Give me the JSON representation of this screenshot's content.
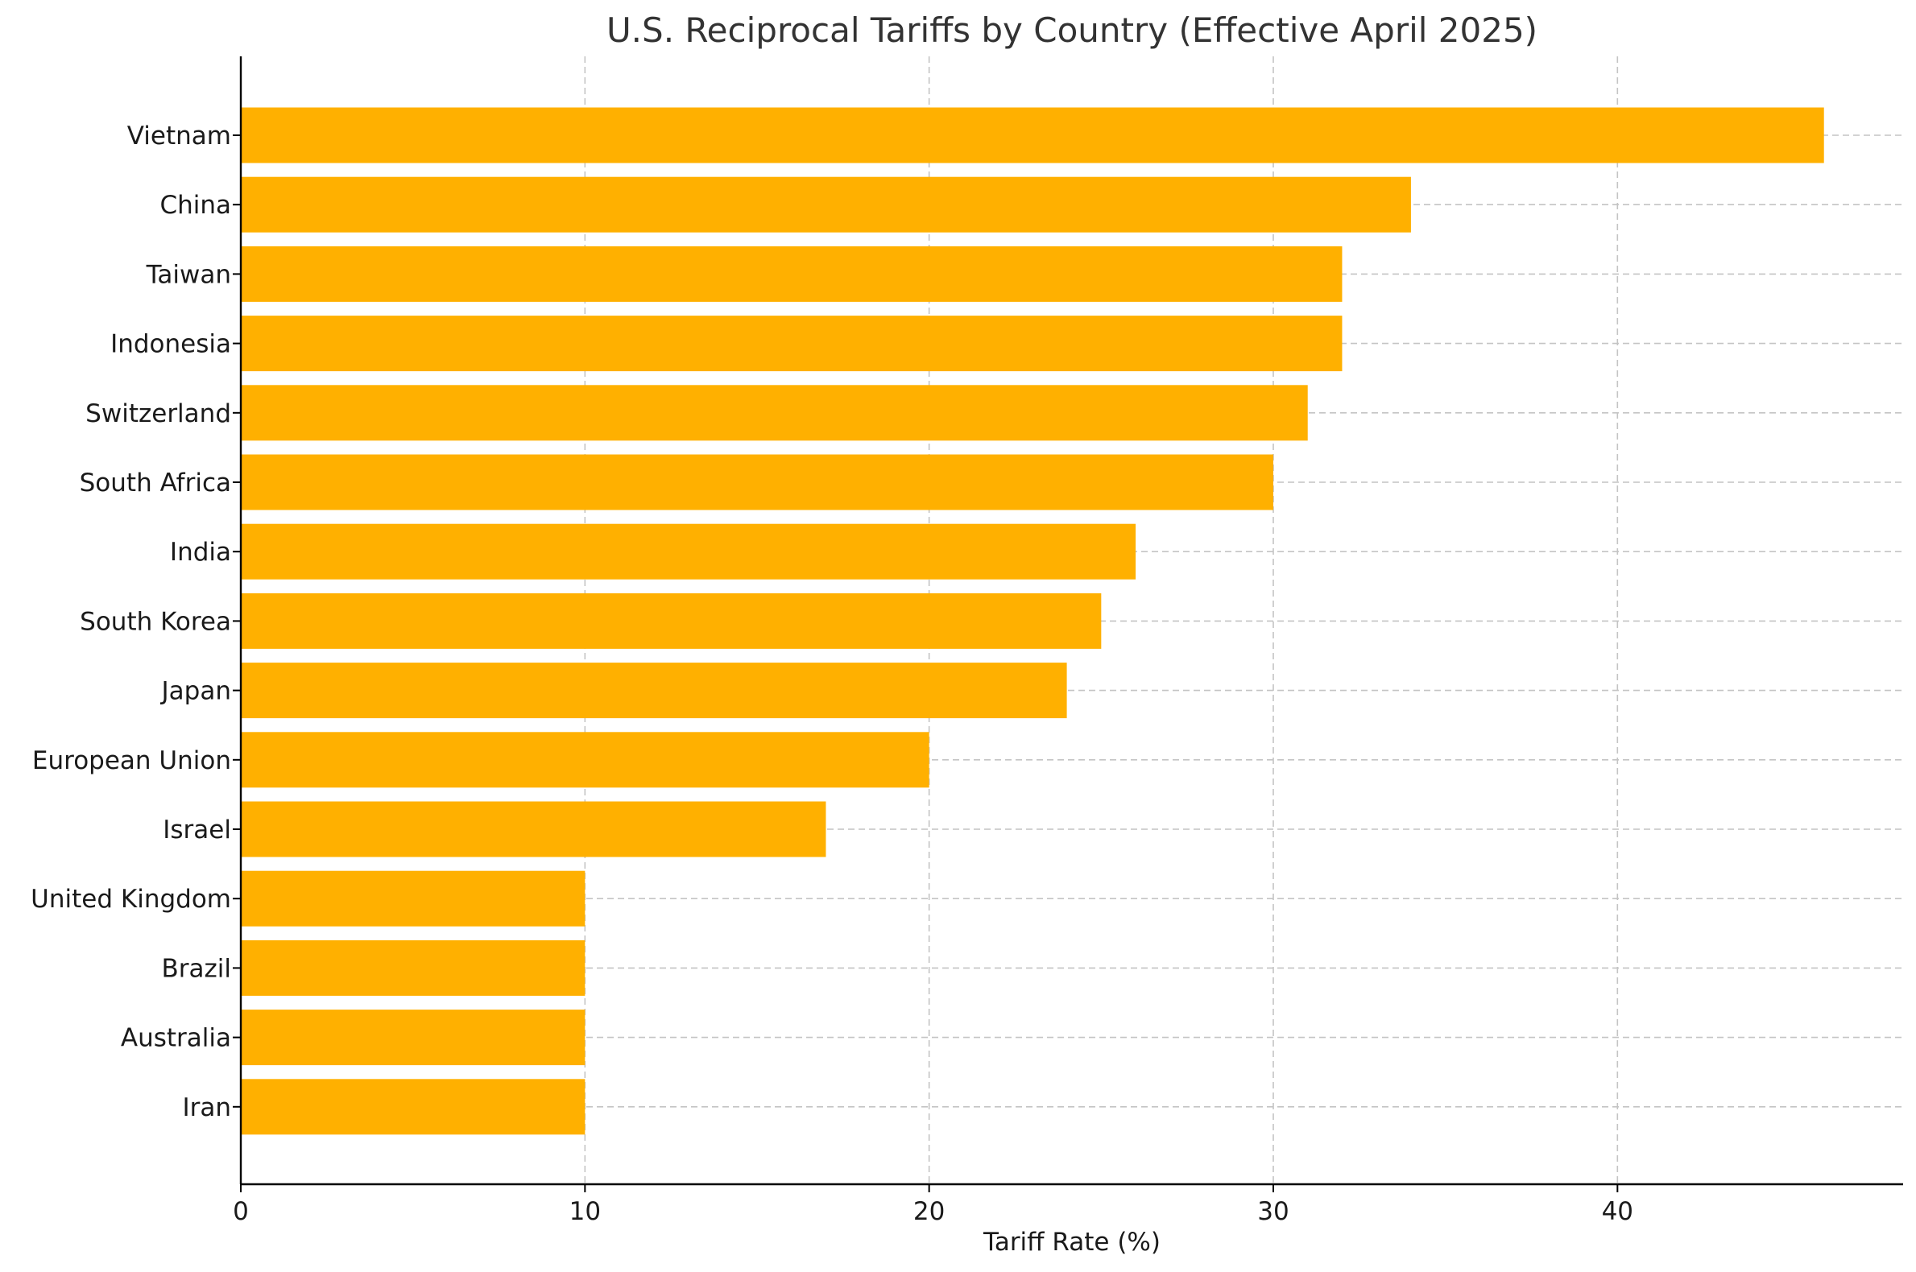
{
  "chart_data": {
    "type": "bar",
    "orientation": "horizontal",
    "title": "U.S. Reciprocal Tariffs by Country (Effective April 2025)",
    "xlabel": "Tariff Rate (%)",
    "ylabel": "",
    "xlim": [
      0,
      48.3
    ],
    "xticks": [
      0,
      10,
      20,
      30,
      40
    ],
    "grid": true,
    "bar_color": "#FFB000",
    "categories": [
      "Vietnam",
      "China",
      "Taiwan",
      "Indonesia",
      "Switzerland",
      "South Africa",
      "India",
      "South Korea",
      "Japan",
      "European Union",
      "Israel",
      "United Kingdom",
      "Brazil",
      "Australia",
      "Iran"
    ],
    "values": [
      46,
      34,
      32,
      32,
      31,
      30,
      26,
      25,
      24,
      20,
      17,
      10,
      10,
      10,
      10
    ]
  }
}
